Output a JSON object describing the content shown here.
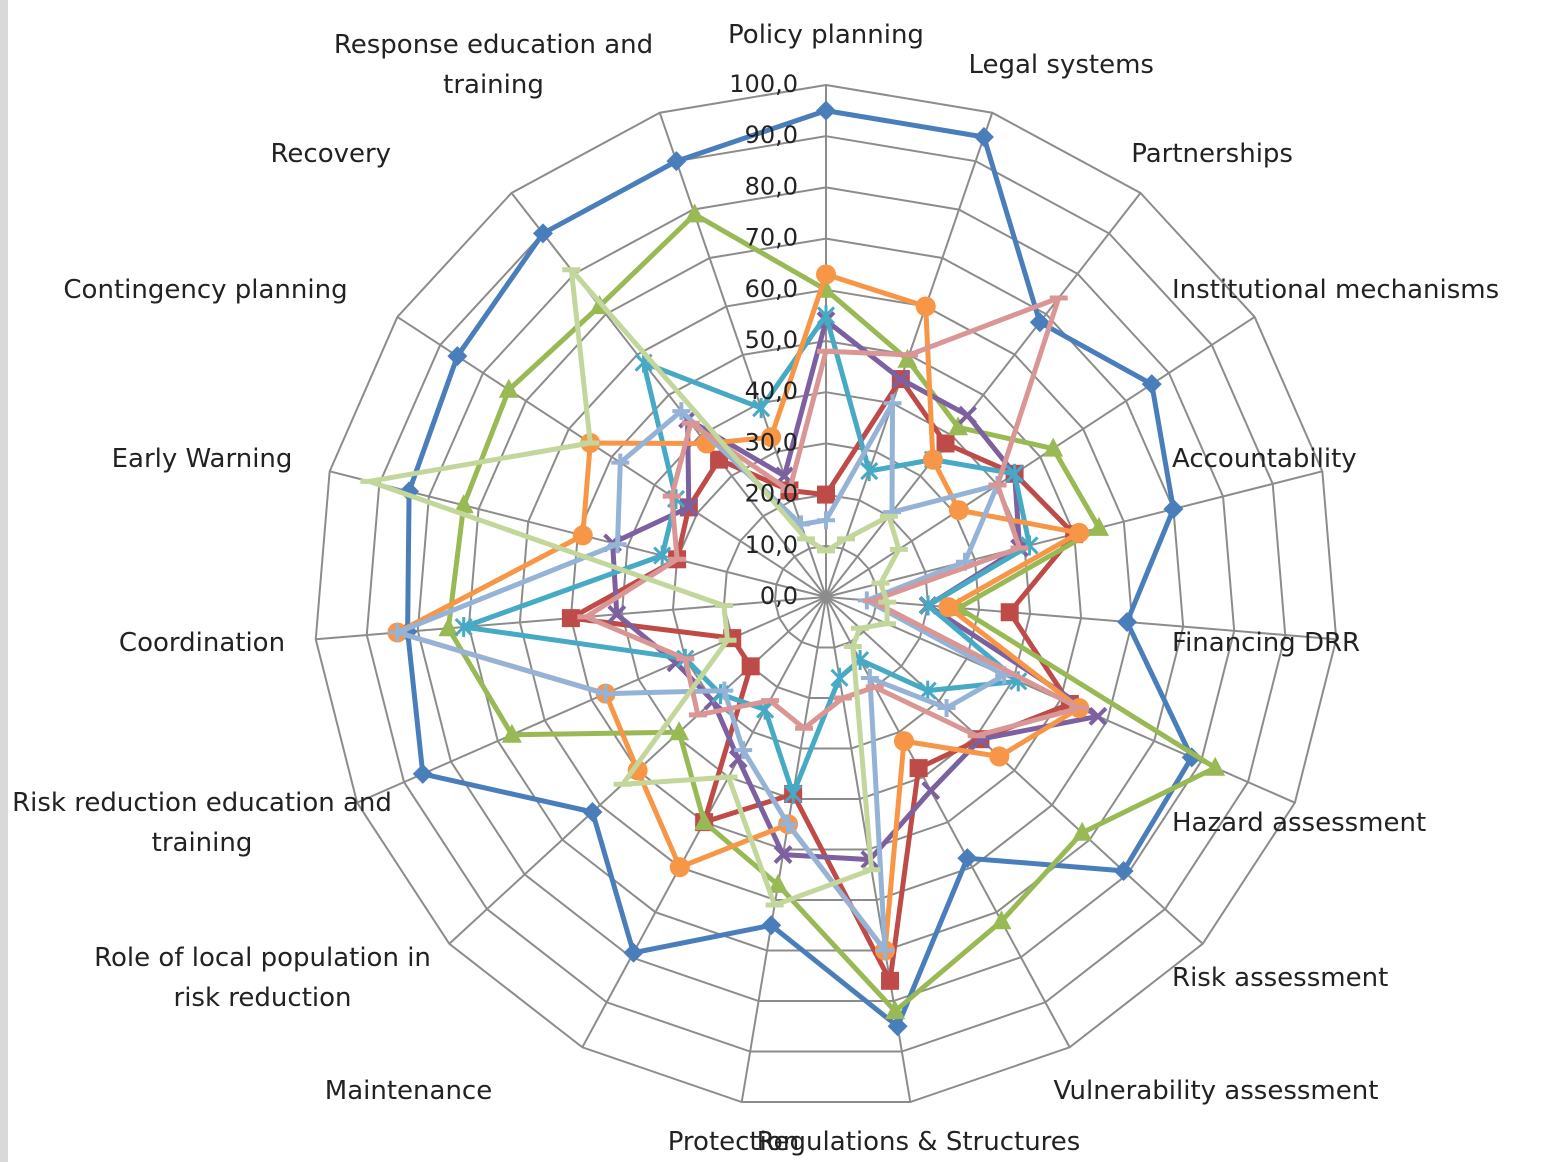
{
  "chart_data": {
    "type": "radar",
    "categories": [
      "Policy planning",
      "Legal systems",
      "Partnerships",
      "Institutional mechanisms",
      "Accountability",
      "Financing DRR",
      "Hazard assessment",
      "Risk assessment",
      "Vulnerability assessment",
      "Regulations & Structures",
      "Protection",
      "Maintenance",
      "Role of local population in risk reduction",
      "Risk reduction education and training",
      "Coordination",
      "Early Warning",
      "Contingency planning",
      "Recovery",
      "Response education and training"
    ],
    "ylim": [
      0,
      100
    ],
    "yticks": [
      {
        "value": 0,
        "label": "0,0"
      },
      {
        "value": 10,
        "label": "10,0"
      },
      {
        "value": 20,
        "label": "20,0"
      },
      {
        "value": 30,
        "label": "30,0"
      },
      {
        "value": 40,
        "label": "40,0"
      },
      {
        "value": 50,
        "label": "50,0"
      },
      {
        "value": 60,
        "label": "60,0"
      },
      {
        "value": 70,
        "label": "70,0"
      },
      {
        "value": 80,
        "label": "80,0"
      },
      {
        "value": 90,
        "label": "90,0"
      },
      {
        "value": 100,
        "label": "100,0"
      }
    ],
    "grid": true,
    "series": [
      {
        "color": "#4a7ebb",
        "marker": "diamond",
        "values": [
          95,
          95,
          68,
          76,
          70,
          59,
          78,
          79,
          58,
          85,
          65,
          79,
          62,
          86,
          82,
          84,
          86,
          90,
          90
        ]
      },
      {
        "color": "#be4b48",
        "marker": "square",
        "values": [
          20,
          45,
          38,
          44,
          50,
          36,
          52,
          41,
          38,
          76,
          39,
          50,
          20,
          20,
          50,
          30,
          32,
          34,
          22
        ]
      },
      {
        "color": "#98b954",
        "marker": "triangle",
        "values": [
          60,
          49,
          42,
          53,
          55,
          26,
          83,
          68,
          72,
          82,
          57,
          50,
          39,
          67,
          74,
          73,
          74,
          72,
          79
        ]
      },
      {
        "color": "#7d60a0",
        "marker": "x",
        "values": [
          54,
          45,
          45,
          44,
          39,
          20,
          58,
          41,
          43,
          52,
          51,
          36,
          30,
          32,
          41,
          43,
          32,
          44,
          25
        ]
      },
      {
        "color": "#46aac5",
        "marker": "star",
        "values": [
          55,
          26,
          34,
          44,
          41,
          20,
          41,
          27,
          14,
          16,
          39,
          25,
          28,
          30,
          71,
          33,
          35,
          58,
          39
        ]
      },
      {
        "color": "#f79646",
        "marker": "circle",
        "values": [
          63,
          60,
          34,
          31,
          51,
          24,
          54,
          46,
          32,
          70,
          45,
          60,
          50,
          47,
          84,
          49,
          55,
          38,
          33
        ]
      },
      {
        "color": "#95b3d7",
        "marker": "plus",
        "values": [
          15,
          40,
          21,
          40,
          28,
          8,
          38,
          32,
          18,
          70,
          45,
          34,
          27,
          47,
          84,
          42,
          48,
          46,
          15
        ]
      },
      {
        "color": "#d99694",
        "marker": "dash",
        "values": [
          48,
          50,
          74,
          40,
          39,
          9,
          54,
          40,
          20,
          20,
          26,
          23,
          34,
          30,
          47,
          30,
          36,
          43,
          22
        ]
      },
      {
        "color": "#c3d69b",
        "marker": "dash",
        "values": [
          9,
          12,
          20,
          17,
          11,
          12,
          13,
          9,
          11,
          54,
          61,
          40,
          54,
          21,
          20,
          92,
          55,
          81,
          12
        ]
      }
    ]
  }
}
